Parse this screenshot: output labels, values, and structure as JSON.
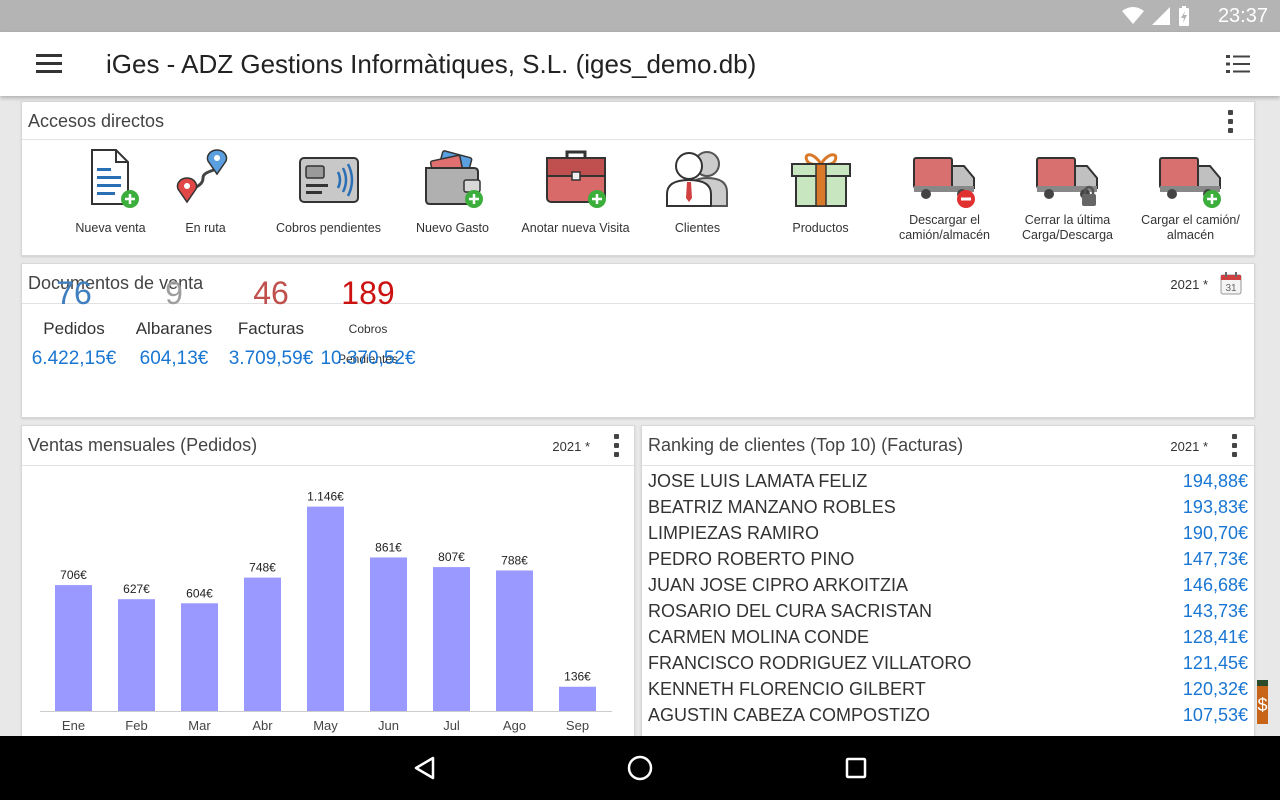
{
  "status": {
    "time": "23:37"
  },
  "appbar": {
    "title": "iGes - ADZ Gestions Informàtiques, S.L. (iges_demo.db)"
  },
  "shortcuts": {
    "title": "Accesos directos",
    "items": [
      {
        "label": "Nueva venta",
        "icon": "new-sale-icon"
      },
      {
        "label": "En ruta",
        "icon": "route-icon"
      },
      {
        "label": "Cobros pendientes",
        "icon": "pending-payments-icon"
      },
      {
        "label": "Nuevo Gasto",
        "icon": "new-expense-icon"
      },
      {
        "label": "Anotar nueva Visita",
        "icon": "new-visit-icon"
      },
      {
        "label": "Clientes",
        "icon": "clients-icon"
      },
      {
        "label": "Productos",
        "icon": "products-icon"
      },
      {
        "label": "Descargar el camión/almacén",
        "icon": "unload-truck-icon"
      },
      {
        "label": "Cerrar la última Carga/Descarga",
        "icon": "close-load-icon"
      },
      {
        "label": "Cargar el camión/ almacén",
        "icon": "load-truck-icon"
      }
    ]
  },
  "sales_docs": {
    "title": "Documentos de venta",
    "year": "2021 *",
    "calendar_day": "31",
    "stats": [
      {
        "count": "76",
        "label": "Pedidos",
        "amount": "6.422,15€",
        "color": "#3f7fbf"
      },
      {
        "count": "9",
        "label": "Albaranes",
        "amount": "604,13€",
        "color": "#9e9e9e"
      },
      {
        "count": "46",
        "label": "Facturas",
        "amount": "3.709,59€",
        "color": "#c0504d"
      },
      {
        "count": "189",
        "label": "Cobros Pendientes",
        "amount": "10.370,52€",
        "color": "#cc1111"
      }
    ]
  },
  "monthly": {
    "title": "Ventas mensuales (Pedidos)",
    "year": "2021 *"
  },
  "chart_data": {
    "type": "bar",
    "categories": [
      "Ene",
      "Feb",
      "Mar",
      "Abr",
      "May",
      "Jun",
      "Jul",
      "Ago",
      "Sep"
    ],
    "values": [
      706,
      627,
      604,
      748,
      1146,
      861,
      807,
      788,
      136
    ],
    "value_labels": [
      "706€",
      "627€",
      "604€",
      "748€",
      "1.146€",
      "861€",
      "807€",
      "788€",
      "136€"
    ],
    "bar_color": "#9999ff",
    "ylim": [
      0,
      1200
    ]
  },
  "ranking": {
    "title": "Ranking de clientes (Top 10) (Facturas)",
    "year": "2021 *",
    "rows": [
      {
        "name": "JOSE LUIS LAMATA FELIZ",
        "amount": "194,88€"
      },
      {
        "name": "BEATRIZ MANZANO ROBLES",
        "amount": "193,83€"
      },
      {
        "name": "LIMPIEZAS RAMIRO",
        "amount": "190,70€"
      },
      {
        "name": "PEDRO ROBERTO PINO",
        "amount": "147,73€"
      },
      {
        "name": "JUAN JOSE CIPRO ARKOITZIA",
        "amount": "146,68€"
      },
      {
        "name": "ROSARIO DEL CURA SACRISTAN",
        "amount": "143,73€"
      },
      {
        "name": "CARMEN MOLINA CONDE",
        "amount": "128,41€"
      },
      {
        "name": "FRANCISCO RODRIGUEZ VILLATORO",
        "amount": "121,45€"
      },
      {
        "name": "KENNETH FLORENCIO GILBERT",
        "amount": "120,32€"
      },
      {
        "name": "AGUSTIN CABEZA COMPOSTIZO",
        "amount": "107,53€"
      }
    ]
  }
}
